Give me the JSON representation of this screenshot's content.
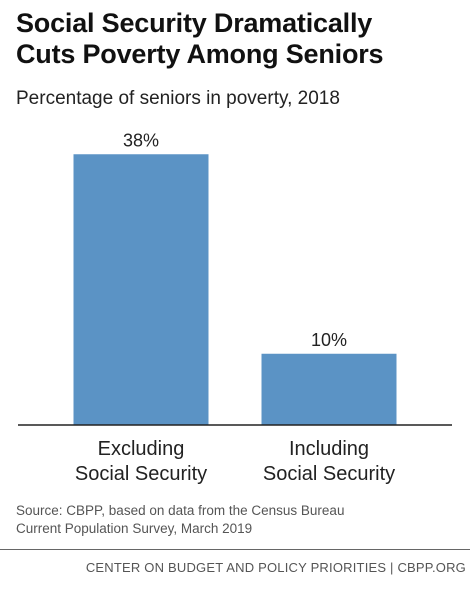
{
  "header": {
    "title_line1": "Social Security Dramatically",
    "title_line2": "Cuts Poverty Among Seniors",
    "subtitle": "Percentage of seniors in poverty, 2018"
  },
  "chart_data": {
    "type": "bar",
    "categories": [
      [
        "Excluding",
        "Social Security"
      ],
      [
        "Including",
        "Social Security"
      ]
    ],
    "values": [
      38,
      10
    ],
    "value_labels": [
      "38%",
      "10%"
    ],
    "ylim": [
      0,
      40
    ],
    "grid": false,
    "legend": "none",
    "bar_color": "#5b93c5"
  },
  "source": {
    "line1": "Source: CBPP, based on data from the Census Bureau",
    "line2": "Current Population Survey, March 2019"
  },
  "footer": {
    "text": "CENTER ON BUDGET AND POLICY PRIORITIES | CBPP.ORG"
  }
}
